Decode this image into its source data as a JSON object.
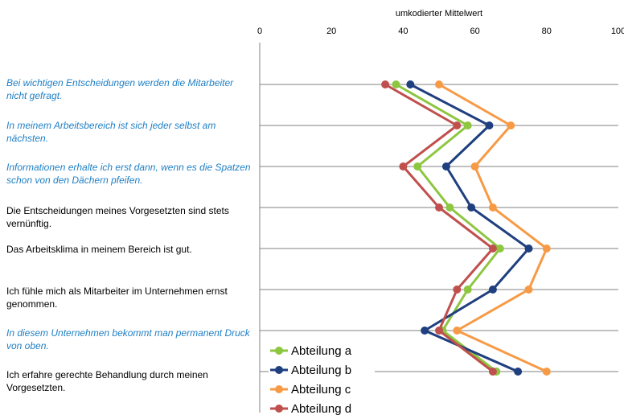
{
  "chart_data": {
    "type": "line",
    "orientation": "horizontal",
    "xlabel": "umkodierter Mittelwert",
    "xlim": [
      0,
      100
    ],
    "x_ticks": [
      "0",
      "20",
      "40",
      "60",
      "80",
      "100"
    ],
    "grid": "horizontal lines at each statement",
    "categories": [
      {
        "text": "Bei wichtigen Entscheidungen werden die Mitarbeiter nicht gefragt.",
        "reversed": true
      },
      {
        "text": "In meinem Arbeitsbereich ist sich jeder selbst am nächsten.",
        "reversed": true
      },
      {
        "text": "Informationen erhalte ich erst dann, wenn es die Spatzen schon von den Dächern pfeifen.",
        "reversed": true
      },
      {
        "text": "Die Entscheidungen meines Vorgesetzten sind stets vernünftig.",
        "reversed": false
      },
      {
        "text": "Das Arbeitsklima in meinem Bereich ist gut.",
        "reversed": false
      },
      {
        "text": "Ich fühle mich als Mitarbeiter im Unternehmen ernst genommen.",
        "reversed": false
      },
      {
        "text": "In diesem Unternehmen bekommt man permanent Druck von oben.",
        "reversed": true
      },
      {
        "text": "Ich erfahre gerechte Behandlung durch meinen Vorgesetzten.",
        "reversed": false
      }
    ],
    "series": [
      {
        "name": "Abteilung a",
        "color": "#8dc63f",
        "values": [
          38,
          58,
          44,
          53,
          67,
          58,
          51,
          66
        ]
      },
      {
        "name": "Abteilung b",
        "color": "#1f3f7f",
        "values": [
          42,
          64,
          52,
          59,
          75,
          65,
          46,
          72
        ]
      },
      {
        "name": "Abteilung c",
        "color": "#f79a46",
        "values": [
          50,
          70,
          60,
          65,
          80,
          75,
          55,
          80
        ]
      },
      {
        "name": "Abteilung d",
        "color": "#c0504d",
        "values": [
          35,
          55,
          40,
          50,
          65,
          55,
          50,
          65
        ]
      }
    ],
    "legend": "bottom-left inside plot"
  },
  "colors": {
    "reversed_label": "#1f7fc4",
    "normal_label": "#000000",
    "gridline": "#808080"
  }
}
